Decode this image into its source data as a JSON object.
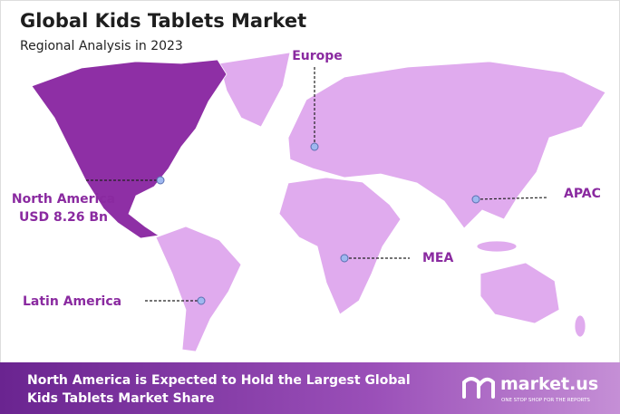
{
  "header": {
    "title": "Global Kids Tablets Market",
    "subtitle": "Regional Analysis in 2023"
  },
  "regions": [
    {
      "label": "Europe"
    },
    {
      "label": "APAC"
    },
    {
      "label": "MEA"
    },
    {
      "label": "Latin America"
    },
    {
      "label": "North America",
      "value": "USD 8.26 Bn"
    }
  ],
  "footer": {
    "lines": [
      "North America is Expected to Hold the Largest Global",
      "Kids Tablets Market Share"
    ],
    "brand": "market.us",
    "tagline": "ONE STOP SHOP FOR THE REPORTS"
  }
}
